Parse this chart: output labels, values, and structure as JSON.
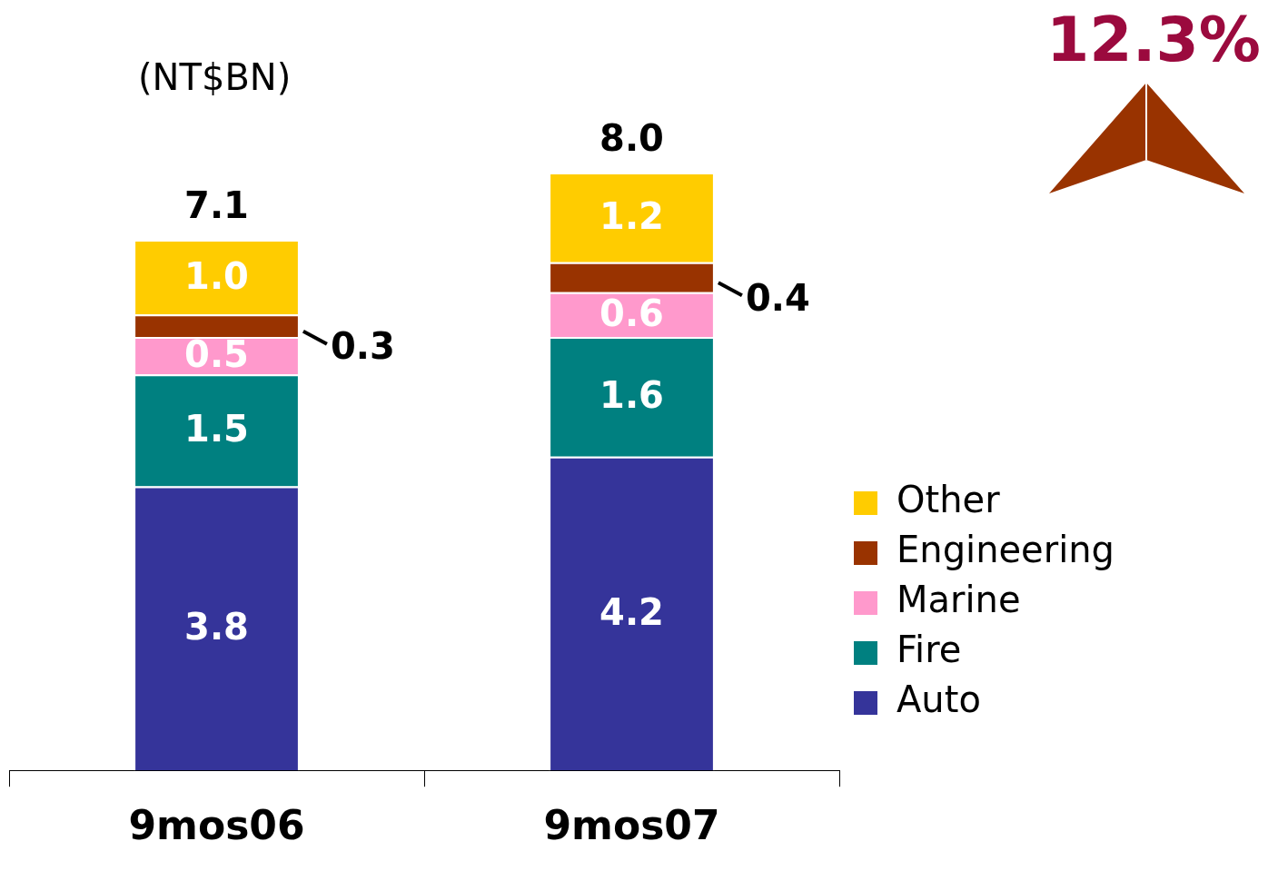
{
  "chart_data": {
    "type": "bar",
    "stacked": true,
    "categories": [
      "9mos06",
      "9mos07"
    ],
    "series": [
      {
        "name": "Auto",
        "color": "#35349a",
        "values": [
          3.8,
          4.2
        ],
        "value_labels": [
          "3.8",
          "4.2"
        ]
      },
      {
        "name": "Fire",
        "color": "#008080",
        "values": [
          1.5,
          1.6
        ],
        "value_labels": [
          "1.5",
          "1.6"
        ]
      },
      {
        "name": "Marine",
        "color": "#ff99cc",
        "values": [
          0.5,
          0.6
        ],
        "value_labels": [
          "0.5",
          "0.6"
        ]
      },
      {
        "name": "Engineering",
        "color": "#993300",
        "values": [
          0.3,
          0.4
        ],
        "value_labels": [
          "0.3",
          "0.4"
        ]
      },
      {
        "name": "Other",
        "color": "#ffcc00",
        "values": [
          1.0,
          1.2
        ],
        "value_labels": [
          "1.0",
          "1.2"
        ]
      }
    ],
    "tick_labels": "x",
    "grid": false,
    "legend": "right",
    "totals": [
      "7.1",
      "8.0"
    ],
    "annotations": [
      "(NT$BN)",
      "12.3%"
    ]
  }
}
